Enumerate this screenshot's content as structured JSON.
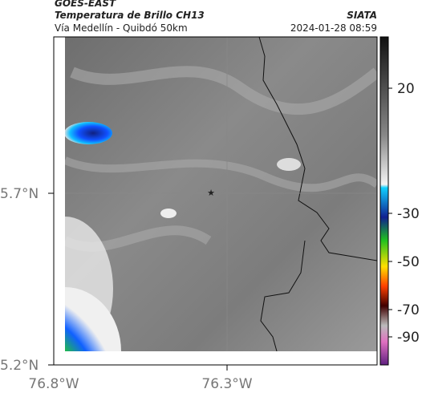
{
  "header": {
    "satellite": "GOES-EAST",
    "product": "Temperatura de Brillo CH13",
    "region": "Vía Medellín - Quibdó 50km",
    "source": "SIATA",
    "datetime": "2024-01-28 08:59"
  },
  "axes": {
    "lat_labels": [
      "5.7°N",
      "5.2°N"
    ],
    "lon_labels": [
      "76.8°W",
      "76.3°W"
    ]
  },
  "colorbar": {
    "ticks": [
      20,
      -30,
      -50,
      -70,
      -90
    ]
  }
}
